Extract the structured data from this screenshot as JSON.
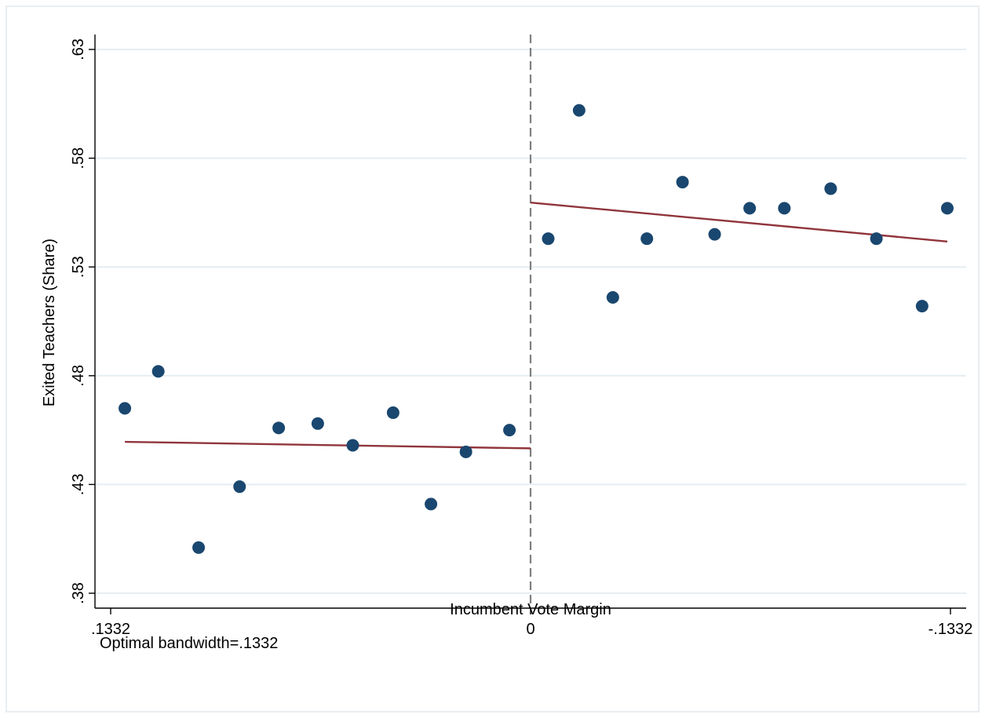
{
  "chart_data": {
    "type": "scatter",
    "title": "",
    "xlabel": "Incumbent Vote Margin",
    "ylabel": "Exited Teachers (Share)",
    "note": "Optimal bandwidth=.1332",
    "xlim": [
      0.1332,
      -0.1332
    ],
    "ylim": [
      0.38,
      0.63
    ],
    "x_ticks": [
      {
        "value": 0.1332,
        "label": ".1332"
      },
      {
        "value": 0,
        "label": "0"
      },
      {
        "value": -0.1332,
        "label": "-.1332"
      }
    ],
    "y_ticks": [
      {
        "value": 0.38,
        "label": ".38"
      },
      {
        "value": 0.43,
        "label": ".43"
      },
      {
        "value": 0.48,
        "label": ".48"
      },
      {
        "value": 0.53,
        "label": ".53"
      },
      {
        "value": 0.58,
        "label": ".58"
      },
      {
        "value": 0.63,
        "label": ".63"
      }
    ],
    "grid": true,
    "cutoff": 0,
    "scatter_color": "#1a476f",
    "fit_color": "#90353b",
    "points": [
      {
        "x": 0.1287,
        "y": 0.465
      },
      {
        "x": 0.1181,
        "y": 0.482
      },
      {
        "x": 0.1053,
        "y": 0.401
      },
      {
        "x": 0.0923,
        "y": 0.429
      },
      {
        "x": 0.0799,
        "y": 0.456
      },
      {
        "x": 0.0675,
        "y": 0.458
      },
      {
        "x": 0.0564,
        "y": 0.448
      },
      {
        "x": 0.0436,
        "y": 0.463
      },
      {
        "x": 0.0316,
        "y": 0.421
      },
      {
        "x": 0.0205,
        "y": 0.445
      },
      {
        "x": 0.0067,
        "y": 0.455
      },
      {
        "x": -0.0056,
        "y": 0.543
      },
      {
        "x": -0.0154,
        "y": 0.602
      },
      {
        "x": -0.0261,
        "y": 0.516
      },
      {
        "x": -0.0369,
        "y": 0.543
      },
      {
        "x": -0.0482,
        "y": 0.569
      },
      {
        "x": -0.0584,
        "y": 0.545
      },
      {
        "x": -0.0695,
        "y": 0.557
      },
      {
        "x": -0.0805,
        "y": 0.557
      },
      {
        "x": -0.0952,
        "y": 0.566
      },
      {
        "x": -0.1097,
        "y": 0.543
      },
      {
        "x": -0.1242,
        "y": 0.512
      },
      {
        "x": -0.1322,
        "y": 0.557
      }
    ],
    "fit_lines": [
      {
        "x": [
          0.1287,
          0
        ],
        "y": [
          0.4496,
          0.4466
        ]
      },
      {
        "x": [
          0,
          -0.1322
        ],
        "y": [
          0.5596,
          0.5417
        ]
      }
    ]
  }
}
